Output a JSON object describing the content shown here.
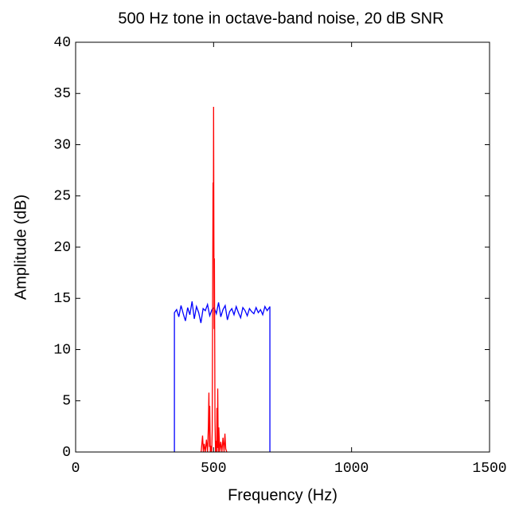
{
  "chart_data": {
    "type": "line",
    "title": "500 Hz tone in octave-band noise, 20 dB SNR",
    "x_label": "Frequency (Hz)",
    "y_label": "Amplitude (dB)",
    "xlim": [
      0,
      1500
    ],
    "xticks": [
      0,
      500,
      1000,
      1500
    ],
    "ylim": [
      0,
      40
    ],
    "yticks": [
      0,
      5,
      10,
      15,
      20,
      25,
      30,
      35,
      40
    ],
    "grid": false,
    "series": [
      {
        "color": "#0000ff",
        "x": [
          358,
          358,
          366,
          374,
          382,
          390,
          398,
          406,
          414,
          422,
          430,
          438,
          446,
          454,
          462,
          470,
          478,
          486,
          494,
          502,
          510,
          518,
          526,
          534,
          542,
          550,
          558,
          566,
          574,
          582,
          590,
          598,
          606,
          614,
          622,
          630,
          638,
          646,
          654,
          662,
          670,
          678,
          686,
          694,
          702,
          704,
          704
        ],
        "values": [
          0,
          13.6,
          13.9,
          13.2,
          14.3,
          13.5,
          12.8,
          14.1,
          13.4,
          14.7,
          13.0,
          14.2,
          13.6,
          12.6,
          14.0,
          13.8,
          14.4,
          13.3,
          13.9,
          14.1,
          13.5,
          14.6,
          13.2,
          13.9,
          14.3,
          12.9,
          13.7,
          14.0,
          13.4,
          14.2,
          13.6,
          13.1,
          14.1,
          13.8,
          13.3,
          14.0,
          13.7,
          13.5,
          14.1,
          13.6,
          13.9,
          13.4,
          14.2,
          13.8,
          14.1,
          14.2,
          0
        ]
      },
      {
        "color": "#ff0000",
        "x": [
          455,
          460,
          463,
          466,
          470,
          474,
          478,
          481,
          483,
          485,
          486,
          488,
          490,
          493,
          495,
          497,
          498,
          499,
          500,
          501,
          502,
          503,
          505,
          507,
          509,
          511,
          512,
          514,
          515,
          517,
          519,
          522,
          526,
          530,
          534,
          538,
          541,
          544,
          548
        ],
        "values": [
          0,
          1.6,
          0,
          0.8,
          0,
          1.2,
          0,
          2.5,
          5.8,
          0.5,
          4.5,
          0,
          0.6,
          0,
          2.1,
          18.5,
          26.3,
          19.0,
          33.7,
          22.0,
          12.0,
          18.9,
          3.0,
          0,
          1.1,
          0,
          4.3,
          0.4,
          6.2,
          0,
          2.4,
          0,
          1.0,
          0,
          1.4,
          0,
          1.8,
          0.3,
          0
        ]
      }
    ]
  }
}
